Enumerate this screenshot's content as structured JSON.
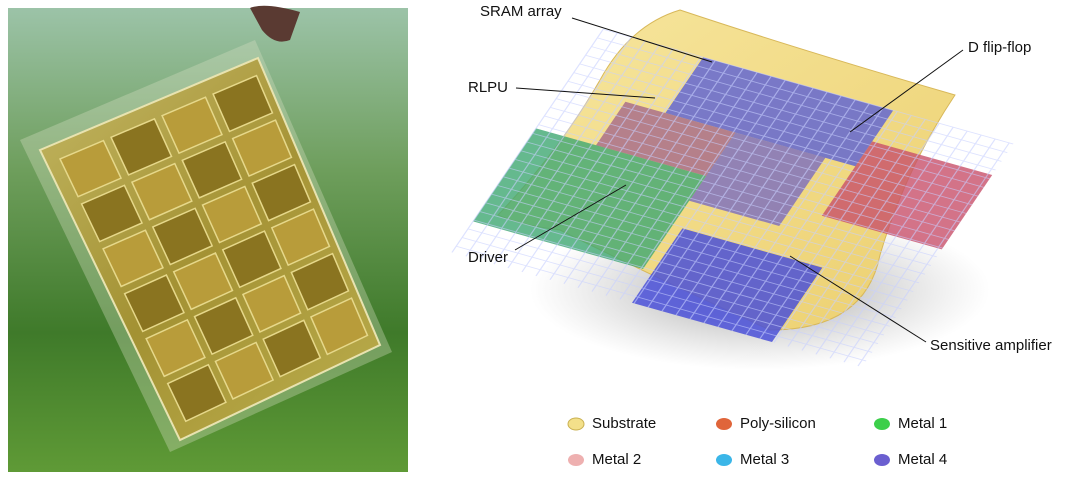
{
  "labels": [
    "SRAM array",
    "RLPU",
    "D flip-flop",
    "Driver",
    "Sensitive amplifier"
  ],
  "legend": [
    "Substrate",
    "Poly-silicon",
    "Metal 1",
    "Metal 2",
    "Metal 3",
    "Metal 4"
  ]
}
